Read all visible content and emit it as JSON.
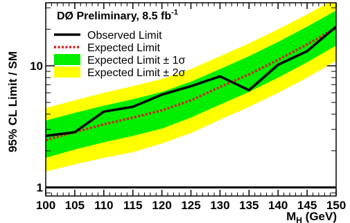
{
  "chart_data": {
    "type": "line",
    "title": "DØ Preliminary, 8.5 fb",
    "title_superscript": "-1",
    "xlabel_main": "M",
    "xlabel_sub": "H",
    "xlabel_unit": " (GeV)",
    "ylabel": "95% CL Limit / SM",
    "y_scale": "log",
    "xlim": [
      100,
      150
    ],
    "ylim": [
      0.85,
      33
    ],
    "x_ticks": [
      100,
      105,
      110,
      115,
      120,
      125,
      130,
      135,
      140,
      145,
      150
    ],
    "x_tick_labels": [
      "100",
      "105",
      "110",
      "115",
      "120",
      "125",
      "130",
      "135",
      "140",
      "145",
      "150"
    ],
    "y_tick_values": [
      1,
      10
    ],
    "y_tick_labels": [
      "1",
      "10"
    ],
    "reference_line": 1,
    "x": [
      100,
      105,
      110,
      115,
      120,
      125,
      130,
      135,
      140,
      145,
      150
    ],
    "observed": [
      2.65,
      2.85,
      4.2,
      4.6,
      5.8,
      6.8,
      8.2,
      6.3,
      10.2,
      13.2,
      21.0
    ],
    "expected": [
      2.45,
      2.85,
      3.3,
      3.75,
      4.3,
      5.2,
      6.7,
      8.5,
      11.2,
      15.0,
      20.5
    ],
    "band_1sigma_low": [
      1.75,
      2.05,
      2.35,
      2.65,
      3.05,
      3.75,
      4.8,
      6.1,
      8.0,
      10.7,
      14.7
    ],
    "band_1sigma_high": [
      3.55,
      4.1,
      4.7,
      5.3,
      6.1,
      7.4,
      9.4,
      12.0,
      15.7,
      21.0,
      28.5
    ],
    "band_2sigma_low": [
      1.35,
      1.55,
      1.75,
      1.95,
      2.3,
      2.8,
      3.6,
      4.6,
      6.0,
      8.0,
      11.0
    ],
    "band_2sigma_high": [
      4.5,
      5.2,
      6.0,
      6.8,
      7.8,
      9.4,
      12.0,
      15.3,
      20.0,
      26.5,
      36.0
    ],
    "legend": {
      "placement": "top-left",
      "entries": [
        {
          "key": "observed",
          "label": "Observed Limit",
          "color": "#000000",
          "style": "solid"
        },
        {
          "key": "expected",
          "label": "Expected Limit",
          "color": "#d62020",
          "style": "dotted"
        },
        {
          "key": "band1",
          "label": "Expected Limit ± 1σ",
          "color": "#00ee00",
          "style": "fill"
        },
        {
          "key": "band2",
          "label": "Expected Limit ± 2σ",
          "color": "#ffff00",
          "style": "fill"
        }
      ]
    },
    "colors": {
      "band_1sigma": "#00ee00",
      "band_2sigma": "#ffff00",
      "observed": "#000000",
      "expected": "#d62020"
    }
  }
}
